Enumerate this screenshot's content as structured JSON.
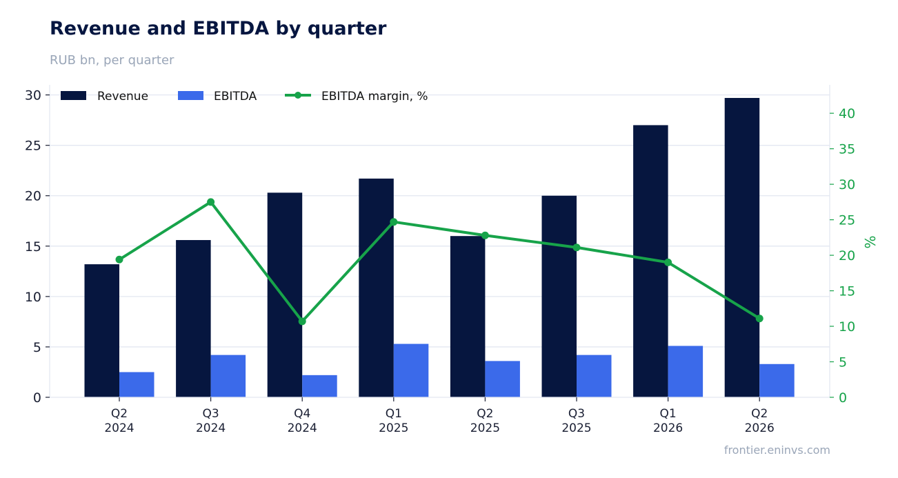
{
  "header": {
    "title": "Revenue and EBITDA by quarter",
    "subtitle": "RUB bn, per quarter"
  },
  "footer": {
    "source": "frontier.eninvs.com"
  },
  "colors": {
    "revenue": "#06163f",
    "ebitda": "#3b6aea",
    "margin": "#17a34a",
    "grid": "#e3e7f1",
    "axis_text": "#1a1f33",
    "right_axis_text": "#17a34a"
  },
  "chart_data": {
    "type": "bar",
    "title": "Revenue and EBITDA by quarter",
    "subtitle": "RUB bn, per quarter",
    "categories": [
      [
        "Q2",
        "2024"
      ],
      [
        "Q3",
        "2024"
      ],
      [
        "Q4",
        "2024"
      ],
      [
        "Q1",
        "2025"
      ],
      [
        "Q2",
        "2025"
      ],
      [
        "Q3",
        "2025"
      ],
      [
        "Q1",
        "2026"
      ],
      [
        "Q2",
        "2026"
      ]
    ],
    "series": [
      {
        "name": "Revenue",
        "type": "bar",
        "axis": "left",
        "values": [
          13.2,
          15.6,
          20.3,
          21.7,
          16.0,
          20.0,
          27.0,
          29.7
        ]
      },
      {
        "name": "EBITDA",
        "type": "bar",
        "axis": "left",
        "values": [
          2.5,
          4.2,
          2.2,
          5.3,
          3.6,
          4.2,
          5.1,
          3.3
        ]
      },
      {
        "name": "EBITDA margin, %",
        "type": "line",
        "axis": "right",
        "values": [
          19.4,
          27.5,
          10.7,
          24.7,
          22.8,
          21.1,
          19.0,
          11.1
        ]
      }
    ],
    "y_left": {
      "label": "",
      "range": [
        0,
        31
      ],
      "ticks": [
        0,
        5,
        10,
        15,
        20,
        25,
        30
      ]
    },
    "y_right": {
      "label": "%",
      "range": [
        0,
        44
      ],
      "ticks": [
        0,
        5,
        10,
        15,
        20,
        25,
        30,
        35,
        40
      ]
    },
    "xlabel": "",
    "grid": true,
    "legend": "top-left"
  }
}
